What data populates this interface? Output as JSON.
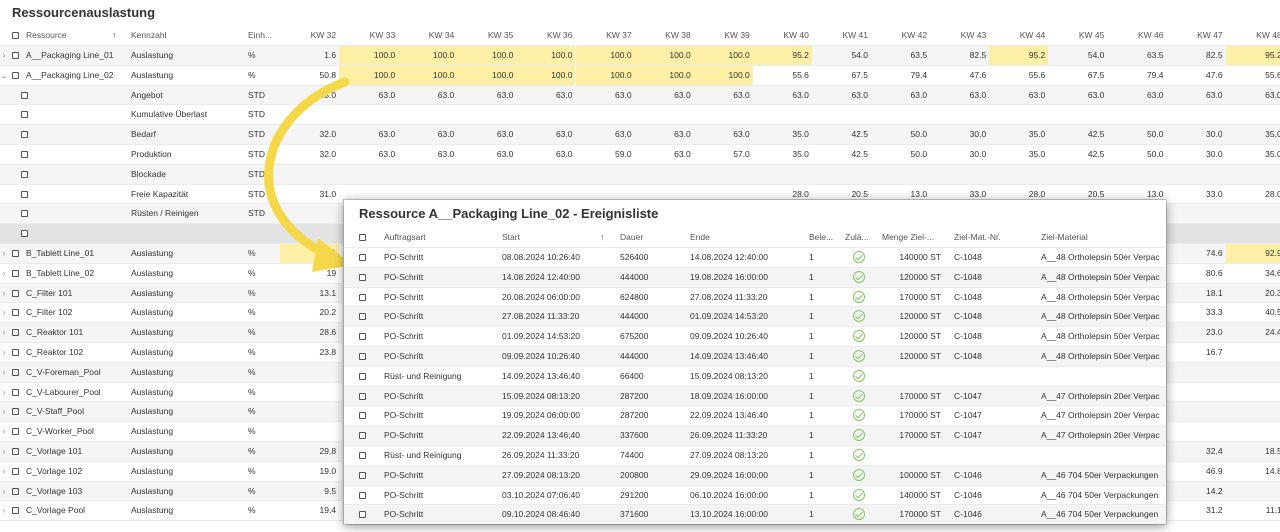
{
  "page_title": "Ressourcenauslastung",
  "grid": {
    "headers": {
      "ressource": "Ressource",
      "kennzahl": "Kennzahl",
      "einheit": "Einh...",
      "weeks": [
        "KW 32",
        "KW 33",
        "KW 34",
        "KW 35",
        "KW 36",
        "KW 37",
        "KW 38",
        "KW 39",
        "KW 40",
        "KW 41",
        "KW 42",
        "KW 43",
        "KW 44",
        "KW 45",
        "KW 46",
        "KW 47",
        "KW 48"
      ]
    },
    "rows": [
      {
        "exp": "›",
        "ressource": "A__Packaging Line_01",
        "kennzahl": "Auslastung",
        "einheit": "%",
        "values": [
          "1.6",
          "100.0",
          "100.0",
          "100.0",
          "100.0",
          "100.0",
          "100.0",
          "100.0",
          "95.2",
          "54.0",
          "63.5",
          "82.5",
          "95.2",
          "54.0",
          "63.5",
          "82.5",
          "95.2"
        ],
        "highlight": [
          1,
          2,
          3,
          4,
          5,
          6,
          7,
          8,
          12,
          16
        ],
        "bg": "alt"
      },
      {
        "exp": "⌄",
        "ressource": "A__Packaging Line_02",
        "kennzahl": "Auslastung",
        "einheit": "%",
        "values": [
          "50.8",
          "100.0",
          "100.0",
          "100.0",
          "100.0",
          "100.0",
          "100.0",
          "100.0",
          "55.6",
          "67.5",
          "79.4",
          "47.6",
          "55.6",
          "67.5",
          "79.4",
          "47.6",
          "55.6"
        ],
        "highlight": [
          1,
          2,
          3,
          4,
          5,
          6,
          7
        ],
        "bg": ""
      },
      {
        "exp": "",
        "ressource": "",
        "kennzahl": "Angebot",
        "einheit": "STD",
        "values": [
          "63.0",
          "63.0",
          "63.0",
          "63.0",
          "63.0",
          "63.0",
          "63.0",
          "63.0",
          "63.0",
          "63.0",
          "63.0",
          "63.0",
          "63.0",
          "63.0",
          "63.0",
          "63.0",
          "63.0"
        ],
        "highlight": [],
        "bg": "alt",
        "sub": true
      },
      {
        "exp": "",
        "ressource": "",
        "kennzahl": "Kumulative Überlast",
        "einheit": "STD",
        "values": [
          "",
          "",
          "",
          "",
          "",
          "",
          "",
          "",
          "",
          "",
          "",
          "",
          "",
          "",
          "",
          "",
          ""
        ],
        "highlight": [],
        "bg": "",
        "sub": true
      },
      {
        "exp": "",
        "ressource": "",
        "kennzahl": "Bedarf",
        "einheit": "STD",
        "values": [
          "32.0",
          "63.0",
          "63.0",
          "63.0",
          "63.0",
          "63.0",
          "63.0",
          "63.0",
          "35.0",
          "42.5",
          "50.0",
          "30.0",
          "35.0",
          "42.5",
          "50.0",
          "30.0",
          "35.0"
        ],
        "highlight": [],
        "bg": "alt",
        "sub": true
      },
      {
        "exp": "",
        "ressource": "",
        "kennzahl": "Produktion",
        "einheit": "STD",
        "values": [
          "32.0",
          "63.0",
          "63.0",
          "63.0",
          "63.0",
          "59.0",
          "63.0",
          "57.0",
          "35.0",
          "42.5",
          "50.0",
          "30.0",
          "35.0",
          "42.5",
          "50.0",
          "30.0",
          "35.0"
        ],
        "highlight": [],
        "bg": "",
        "sub": true
      },
      {
        "exp": "",
        "ressource": "",
        "kennzahl": "Blockade",
        "einheit": "STD",
        "values": [
          "",
          "",
          "",
          "",
          "",
          "",
          "",
          "",
          "",
          "",
          "",
          "",
          "",
          "",
          "",
          "",
          ""
        ],
        "highlight": [],
        "bg": "alt",
        "sub": true
      },
      {
        "exp": "",
        "ressource": "",
        "kennzahl": "Freie Kapazität",
        "einheit": "STD",
        "values": [
          "31.0",
          "",
          "",
          "",
          "",
          "",
          "",
          "",
          "28.0",
          "20.5",
          "13.0",
          "33.0",
          "28.0",
          "20.5",
          "13.0",
          "33.0",
          "28.0"
        ],
        "highlight": [],
        "bg": "",
        "sub": true
      },
      {
        "exp": "",
        "ressource": "",
        "kennzahl": "Rüsten / Reinigen",
        "einheit": "STD",
        "values": [
          "",
          "",
          "",
          "",
          "",
          "",
          "",
          "",
          "",
          "",
          "",
          "",
          "",
          "",
          "",
          "",
          ""
        ],
        "highlight": [],
        "bg": "alt",
        "sub": true
      },
      {
        "exp": "",
        "ressource": "",
        "kennzahl": "",
        "einheit": "",
        "values": [
          "",
          "",
          "",
          "",
          "",
          "",
          "",
          "",
          "",
          "",
          "",
          "",
          "",
          "",
          "",
          "",
          ""
        ],
        "highlight": [],
        "bg": "sep",
        "sub": true
      },
      {
        "exp": "›",
        "ressource": "B_Tablett Line_01",
        "kennzahl": "Auslastung",
        "einheit": "%",
        "values": [
          "57.1",
          "",
          "",
          "",
          "",
          "",
          "",
          "",
          "",
          "",
          "",
          "",
          "",
          "",
          "",
          "74.6",
          "92.9"
        ],
        "highlight": [
          0,
          16
        ],
        "bg": "alt"
      },
      {
        "exp": "›",
        "ressource": "B_Tablett Line_02",
        "kennzahl": "Auslastung",
        "einheit": "%",
        "values": [
          "19",
          "",
          "",
          "",
          "",
          "",
          "",
          "",
          "",
          "",
          "",
          "",
          "",
          "",
          "",
          "80.6",
          "34.6"
        ],
        "highlight": [],
        "bg": ""
      },
      {
        "exp": "›",
        "ressource": "C_Filter 101",
        "kennzahl": "Auslastung",
        "einheit": "%",
        "values": [
          "13.1",
          "",
          "",
          "",
          "",
          "",
          "",
          "",
          "",
          "",
          "",
          "",
          "",
          "",
          "",
          "18.1",
          "20.3"
        ],
        "highlight": [],
        "bg": "alt"
      },
      {
        "exp": "›",
        "ressource": "C_Filter 102",
        "kennzahl": "Auslastung",
        "einheit": "%",
        "values": [
          "20.2",
          "",
          "",
          "",
          "",
          "",
          "",
          "",
          "",
          "",
          "",
          "",
          "",
          "",
          "",
          "33.3",
          "40.5"
        ],
        "highlight": [],
        "bg": ""
      },
      {
        "exp": "›",
        "ressource": "C_Reaktor 101",
        "kennzahl": "Auslastung",
        "einheit": "%",
        "values": [
          "28.6",
          "",
          "",
          "",
          "",
          "",
          "",
          "",
          "",
          "",
          "",
          "",
          "",
          "",
          "",
          "23.0",
          "24.4"
        ],
        "highlight": [],
        "bg": "alt"
      },
      {
        "exp": "›",
        "ressource": "C_Reaktor 102",
        "kennzahl": "Auslastung",
        "einheit": "%",
        "values": [
          "23.8",
          "",
          "",
          "",
          "",
          "",
          "",
          "",
          "",
          "",
          "",
          "",
          "",
          "",
          "",
          "16.7",
          ""
        ],
        "highlight": [],
        "bg": ""
      },
      {
        "exp": "›",
        "ressource": "C_V-Foreman_Pool",
        "kennzahl": "Auslastung",
        "einheit": "%",
        "values": [
          "",
          "",
          "",
          "",
          "",
          "",
          "",
          "",
          "",
          "",
          "",
          "",
          "",
          "",
          "",
          "",
          ""
        ],
        "highlight": [],
        "bg": "alt"
      },
      {
        "exp": "›",
        "ressource": "C_V-Labourer_Pool",
        "kennzahl": "Auslastung",
        "einheit": "%",
        "values": [
          "",
          "",
          "",
          "",
          "",
          "",
          "",
          "",
          "",
          "",
          "",
          "",
          "",
          "",
          "",
          "",
          ""
        ],
        "highlight": [],
        "bg": ""
      },
      {
        "exp": "›",
        "ressource": "C_V-Staff_Pool",
        "kennzahl": "Auslastung",
        "einheit": "%",
        "values": [
          "",
          "",
          "",
          "",
          "",
          "",
          "",
          "",
          "",
          "",
          "",
          "",
          "",
          "",
          "",
          "",
          ""
        ],
        "highlight": [],
        "bg": "alt"
      },
      {
        "exp": "›",
        "ressource": "C_V-Worker_Pool",
        "kennzahl": "Auslastung",
        "einheit": "%",
        "values": [
          "",
          "",
          "",
          "",
          "",
          "",
          "",
          "",
          "",
          "",
          "",
          "",
          "",
          "",
          "",
          "",
          ""
        ],
        "highlight": [],
        "bg": ""
      },
      {
        "exp": "›",
        "ressource": "C_Vorlage 101",
        "kennzahl": "Auslastung",
        "einheit": "%",
        "values": [
          "29.8",
          "",
          "",
          "",
          "",
          "",
          "",
          "",
          "",
          "",
          "",
          "",
          "",
          "",
          "",
          "32.4",
          "18.5"
        ],
        "highlight": [],
        "bg": "alt"
      },
      {
        "exp": "›",
        "ressource": "C_Vorlage 102",
        "kennzahl": "Auslastung",
        "einheit": "%",
        "values": [
          "19.0",
          "",
          "",
          "",
          "",
          "",
          "",
          "",
          "",
          "",
          "",
          "",
          "",
          "",
          "",
          "46.9",
          "14.8"
        ],
        "highlight": [],
        "bg": ""
      },
      {
        "exp": "›",
        "ressource": "C_Vorlage 103",
        "kennzahl": "Auslastung",
        "einheit": "%",
        "values": [
          "9.5",
          "",
          "",
          "",
          "",
          "",
          "",
          "",
          "",
          "",
          "",
          "",
          "",
          "",
          "",
          "14.2",
          ""
        ],
        "highlight": [],
        "bg": "alt"
      },
      {
        "exp": "›",
        "ressource": "C_Vorlage Pool",
        "kennzahl": "Auslastung",
        "einheit": "%",
        "values": [
          "19.4",
          "",
          "",
          "",
          "",
          "",
          "",
          "",
          "",
          "",
          "",
          "",
          "",
          "",
          "",
          "31.2",
          "11.1"
        ],
        "highlight": [],
        "bg": ""
      }
    ]
  },
  "popup": {
    "title": "Ressource A__Packaging Line_02 - Ereignisliste",
    "headers": [
      "Auftragsart",
      "Start",
      "Dauer",
      "Ende",
      "Bele...",
      "Zulä...",
      "Menge Ziel-...",
      "Ziel-Mat.-Nr.",
      "Ziel-Material"
    ],
    "rows": [
      [
        "PO-Schritt",
        "08.08.2024 10:26:40",
        "526400",
        "14.08.2024 12:40:00",
        "1",
        "ok",
        "140000 ST",
        "C-1048",
        "A__48 Ortholepsin 50er Verpac"
      ],
      [
        "PO-Schritt",
        "14.08.2024 12:40:00",
        "444000",
        "19.08.2024 16:00:00",
        "1",
        "ok",
        "120000 ST",
        "C-1048",
        "A__48 Ortholepsin 50er Verpac"
      ],
      [
        "PO-Schritt",
        "20.08.2024 06:00:00",
        "624800",
        "27.08.2024 11:33:20",
        "1",
        "ok",
        "170000 ST",
        "C-1048",
        "A__48 Ortholepsin 50er Verpac"
      ],
      [
        "PO-Schritt",
        "27.08.2024 11:33:20",
        "444000",
        "01.09.2024 14:53:20",
        "1",
        "ok",
        "120000 ST",
        "C-1048",
        "A__48 Ortholepsin 50er Verpac"
      ],
      [
        "PO-Schritt",
        "01.09.2024 14:53:20",
        "675200",
        "09.09.2024 10:26:40",
        "1",
        "ok",
        "120000 ST",
        "C-1048",
        "A__48 Ortholepsin 50er Verpac"
      ],
      [
        "PO-Schritt",
        "09.09.2024 10:26:40",
        "444000",
        "14.09.2024 13:46:40",
        "1",
        "ok",
        "120000 ST",
        "C-1048",
        "A__48 Ortholepsin 50er Verpac"
      ],
      [
        "Rüst- und Reinigung",
        "14.09.2024 13:46:40",
        "66400",
        "15.09.2024 08:13:20",
        "1",
        "ok",
        "",
        "",
        ""
      ],
      [
        "PO-Schritt",
        "15.09.2024 08:13:20",
        "287200",
        "18.09.2024 16:00:00",
        "1",
        "ok",
        "170000 ST",
        "C-1047",
        "A__47 Ortholepsin 20er Verpac"
      ],
      [
        "PO-Schritt",
        "19.09.2024 06:00:00",
        "287200",
        "22.09.2024 13:46:40",
        "1",
        "ok",
        "170000 ST",
        "C-1047",
        "A__47 Ortholepsin 20er Verpac"
      ],
      [
        "PO-Schritt",
        "22.09.2024 13:46:40",
        "337600",
        "26.09.2024 11:33:20",
        "1",
        "ok",
        "170000 ST",
        "C-1047",
        "A__47 Ortholepsin 20er Verpac"
      ],
      [
        "Rüst- und Reinigung",
        "26.09.2024 11:33:20",
        "74400",
        "27.09.2024 08:13:20",
        "1",
        "ok",
        "",
        "",
        ""
      ],
      [
        "PO-Schritt",
        "27.09.2024 08:13:20",
        "200800",
        "29.09.2024 16:00:00",
        "1",
        "ok",
        "100000 ST",
        "C-1046",
        "A__46 704 50er Verpackungen"
      ],
      [
        "PO-Schritt",
        "03.10.2024 07:06:40",
        "291200",
        "06.10.2024 16:00:00",
        "1",
        "ok",
        "140000 ST",
        "C-1046",
        "A__46 704 50er Verpackungen"
      ],
      [
        "PO-Schritt",
        "09.10.2024 08:46:40",
        "371600",
        "13.10.2024 16:00:00",
        "1",
        "ok",
        "170000 ST",
        "C-1046",
        "A__46 704 50er Verpackungen"
      ]
    ]
  },
  "colors": {
    "highlight": "#fdf0a6",
    "check": "#7ec85a",
    "arrow": "#f5d84a"
  }
}
